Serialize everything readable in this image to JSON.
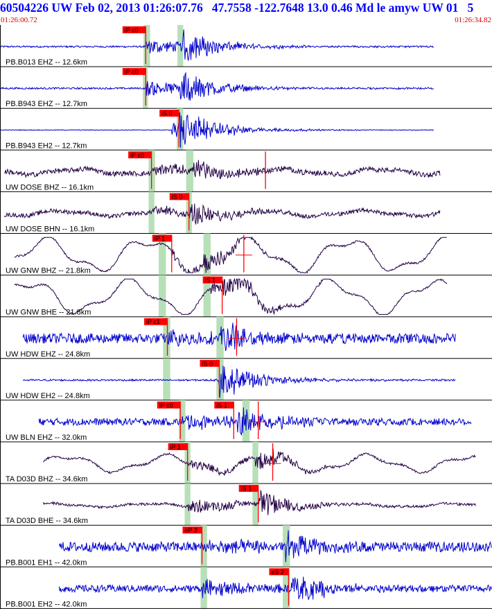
{
  "header": {
    "title": "60504226 UW Feb 02, 2013 01:26:07.76   47.7558 -122.7648 13.0 0.46 Md le amyw UW 01   5",
    "start_time": "01:26:00.72",
    "end_time": "01:26:34.82"
  },
  "colors": {
    "short_period": "#0000cc",
    "broadband": "#220044",
    "pick": "#ff0000",
    "pick_window": "#b8e0b8"
  },
  "chart_data": {
    "type": "line",
    "title": "60504226 UW Feb 02, 2013 01:26:07.76   47.7558 -122.7648 13.0 0.46 Md le amyw UW 01   5",
    "x_range": [
      "01:26:00.72",
      "01:26:34.82"
    ],
    "traces": [
      {
        "label": "PB.B013 EHZ -- 12.6km",
        "kind": "short_period",
        "picks": [
          {
            "label": "iP c0",
            "t": 10.1
          }
        ],
        "green": [
          [
            9.95,
            10.4
          ],
          [
            12.3,
            12.7
          ]
        ],
        "data_start": 0.0,
        "data_end": 30.1,
        "onset": 10.1,
        "s_onset": 12.6,
        "amp": 1.0,
        "noise": 0.05
      },
      {
        "label": "PB.B943 EHZ -- 12.7km",
        "kind": "short_period",
        "picks": [
          {
            "label": "iP c0",
            "t": 10.1
          }
        ],
        "green": [
          [
            9.9,
            10.25
          ]
        ],
        "data_start": 0.0,
        "data_end": 30.1,
        "onset": 10.1,
        "s_onset": 12.5,
        "amp": 1.0,
        "noise": 0.05
      },
      {
        "label": "PB.B943 EH2 -- 12.7km",
        "kind": "short_period",
        "picks": [
          {
            "label": "iS 0",
            "t": 12.4
          }
        ],
        "green": [
          [
            12.25,
            12.7
          ]
        ],
        "data_start": 0.0,
        "data_end": 30.1,
        "onset": 11.9,
        "s_onset": 12.4,
        "amp": 1.0,
        "noise": 0.02
      },
      {
        "label": "UW DOSE BHZ -- 16.1km",
        "kind": "broadband",
        "picks": [
          {
            "label": "iP c0",
            "t": 10.5
          },
          {
            "label": "",
            "t": 18.4
          }
        ],
        "green": [
          [
            10.3,
            10.75
          ],
          [
            12.9,
            13.4
          ]
        ],
        "data_start": 0.3,
        "data_end": 30.5,
        "onset": 10.5,
        "s_onset": 13.2,
        "amp": 0.7,
        "noise": 0.14,
        "swell": 0.15
      },
      {
        "label": "UW DOSE BHN -- 16.1km",
        "kind": "broadband",
        "picks": [
          {
            "label": "iS 0",
            "t": 13.1
          }
        ],
        "green": [
          [
            10.3,
            10.7
          ],
          [
            12.9,
            13.3
          ]
        ],
        "data_start": 0.3,
        "data_end": 30.5,
        "onset": 10.5,
        "s_onset": 13.1,
        "amp": 0.7,
        "noise": 0.12,
        "swell": 0.15
      },
      {
        "label": "UW GNW BHZ -- 21.8km",
        "kind": "broadband",
        "picks": [
          {
            "label": "iP 1",
            "t": 11.9
          },
          {
            "label": "",
            "t": 16.9
          }
        ],
        "green": [
          [
            11.0,
            11.5
          ],
          [
            14.1,
            14.6
          ]
        ],
        "data_start": 1.0,
        "data_end": 31.0,
        "onset": 11.9,
        "s_onset": 14.1,
        "amp": 0.6,
        "noise": 0.05,
        "swell": 0.9
      },
      {
        "label": "UW GNW BHE -- 21.8km",
        "kind": "broadband",
        "picks": [
          {
            "label": "iS 1",
            "t": 15.4
          }
        ],
        "green": [
          [
            11.0,
            11.5
          ],
          [
            14.1,
            14.6
          ]
        ],
        "data_start": 1.0,
        "data_end": 31.0,
        "onset": 14.6,
        "s_onset": 15.4,
        "amp": 0.7,
        "noise": 0.05,
        "swell": 0.9
      },
      {
        "label": "UW HDW EHZ -- 24.8km",
        "kind": "short_period",
        "picks": [
          {
            "label": "iP c1",
            "t": 11.6
          },
          {
            "label": "",
            "t": 16.4
          }
        ],
        "green": [
          [
            11.3,
            11.8
          ],
          [
            15.0,
            15.5
          ]
        ],
        "data_start": 1.6,
        "data_end": 31.6,
        "onset": 11.6,
        "s_onset": 15.3,
        "amp": 0.85,
        "noise": 0.28
      },
      {
        "label": "UW HDW EH2 -- 24.8km",
        "kind": "short_period",
        "picks": [
          {
            "label": "iS 0",
            "t": 15.2
          }
        ],
        "green": [
          [
            11.3,
            11.8
          ],
          [
            15.0,
            15.5
          ]
        ],
        "data_start": 1.6,
        "data_end": 31.6,
        "onset": 15.1,
        "s_onset": 15.2,
        "amp": 0.9,
        "noise": 0.05
      },
      {
        "label": "UW BLN EHZ -- 32.0km",
        "kind": "short_period",
        "picks": [
          {
            "label": "iP c0",
            "t": 12.5
          },
          {
            "label": "iS 1",
            "t": 16.2
          },
          {
            "label": "",
            "t": 17.9
          }
        ],
        "green": [
          [
            12.4,
            12.85
          ],
          [
            16.8,
            17.3
          ]
        ],
        "data_start": 2.7,
        "data_end": 32.7,
        "onset": 12.6,
        "s_onset": 16.4,
        "amp": 0.9,
        "noise": 0.2
      },
      {
        "label": "TA D03D BHZ -- 34.6km",
        "kind": "broadband",
        "picks": [
          {
            "label": "iP 1",
            "t": 13.0
          },
          {
            "label": "",
            "t": 18.9
          }
        ],
        "green": [
          [
            12.8,
            13.2
          ],
          [
            17.5,
            17.9
          ]
        ],
        "data_start": 3.0,
        "data_end": 33.0,
        "onset": 13.0,
        "s_onset": 17.7,
        "amp": 0.7,
        "noise": 0.06,
        "swell": 0.45
      },
      {
        "label": "TA D03D BHE -- 34.6km",
        "kind": "broadband",
        "picks": [
          {
            "label": "iS 1",
            "t": 17.9
          }
        ],
        "green": [
          [
            12.8,
            13.2
          ],
          [
            17.5,
            17.9
          ]
        ],
        "data_start": 3.0,
        "data_end": 33.0,
        "onset": 13.0,
        "s_onset": 17.9,
        "amp": 0.9,
        "noise": 0.07,
        "swell": 0.1
      },
      {
        "label": "PB.B001 EH1 -- 42.0km",
        "kind": "short_period",
        "picks": [
          {
            "label": "eP 2",
            "t": 14.0
          }
        ],
        "green": [
          [
            13.9,
            14.35
          ],
          [
            19.6,
            20.1
          ]
        ],
        "data_start": 4.1,
        "data_end": 34.1,
        "onset": 14.0,
        "s_onset": 19.8,
        "amp": 0.8,
        "noise": 0.28
      },
      {
        "label": "PB.B001 EH2 -- 42.0km",
        "kind": "short_period",
        "picks": [
          {
            "label": "eS 2",
            "t": 20.0
          }
        ],
        "green": [
          [
            13.9,
            14.35
          ],
          [
            19.6,
            20.1
          ]
        ],
        "data_start": 4.1,
        "data_end": 34.1,
        "onset": 14.0,
        "s_onset": 20.2,
        "amp": 0.9,
        "noise": 0.2
      }
    ]
  }
}
